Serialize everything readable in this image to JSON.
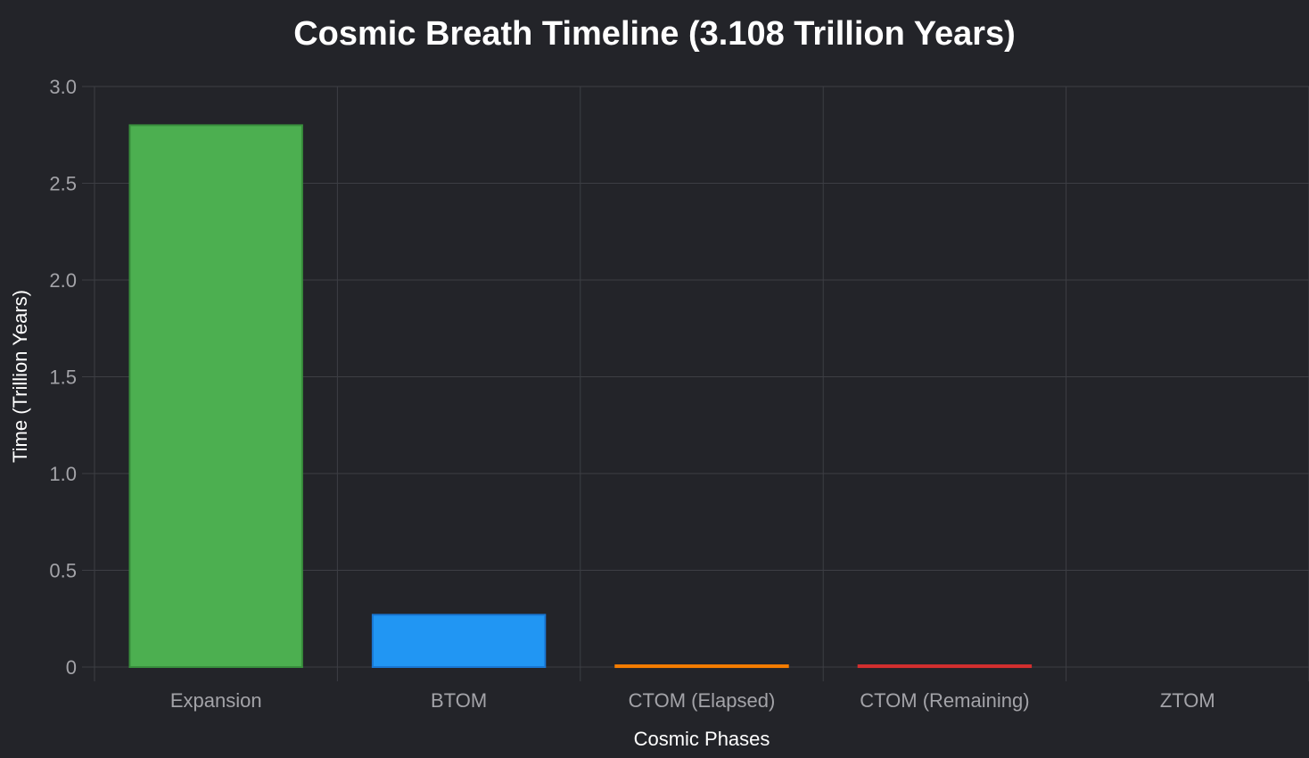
{
  "chart_data": {
    "type": "bar",
    "title": "Cosmic Breath Timeline (3.108 Trillion Years)",
    "xlabel": "Cosmic Phases",
    "ylabel": "Time (Trillion Years)",
    "ylim": [
      0,
      3.0
    ],
    "yticks": [
      {
        "value": 0,
        "label": "0"
      },
      {
        "value": 0.5,
        "label": "0.5"
      },
      {
        "value": 1.0,
        "label": "1.0"
      },
      {
        "value": 1.5,
        "label": "1.5"
      },
      {
        "value": 2.0,
        "label": "2.0"
      },
      {
        "value": 2.5,
        "label": "2.5"
      },
      {
        "value": 3.0,
        "label": "3.0"
      }
    ],
    "categories": [
      "Expansion",
      "BTOM",
      "CTOM (Elapsed)",
      "CTOM (Remaining)",
      "ZTOM"
    ],
    "values": [
      2.8,
      0.27,
      0.009,
      0.009,
      0
    ],
    "colors": [
      "#4caf50",
      "#2196f3",
      "#ff9800",
      "#f44336",
      "#9c27b0"
    ],
    "border_colors": [
      "#388e3c",
      "#1976d2",
      "#f57c00",
      "#d32f2f",
      "#7b1fa2"
    ],
    "grid": true,
    "legend": "none"
  }
}
